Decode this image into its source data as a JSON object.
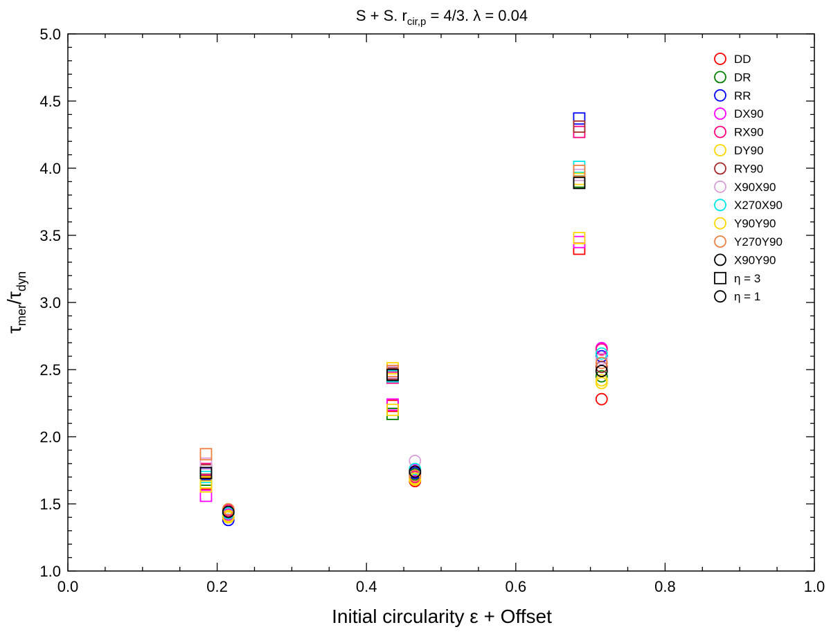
{
  "chart_data": {
    "type": "scatter",
    "title": "S + S. r",
    "title_sub": "cir,p",
    "title_rest": " = 4/3. λ = 0.04",
    "xlabel": "Initial circularity ε + Offset",
    "ylabel_main1": "τ",
    "ylabel_sub1": "mer",
    "ylabel_slash": "/τ",
    "ylabel_sub2": "dyn",
    "xlim": [
      0.0,
      1.0
    ],
    "ylim": [
      1.0,
      5.0
    ],
    "x_ticks": [
      "0.0",
      "0.2",
      "0.4",
      "0.6",
      "0.8",
      "1.0"
    ],
    "y_ticks": [
      "1.0",
      "1.5",
      "2.0",
      "2.5",
      "3.0",
      "3.5",
      "4.0",
      "4.5",
      "5.0"
    ],
    "grid": false,
    "legend_position": "top-right",
    "series": [
      {
        "name": "DD",
        "color": "#ff0000",
        "eta3": [
          [
            0.185,
            1.65
          ],
          [
            0.435,
            2.23
          ],
          [
            0.685,
            3.4
          ]
        ],
        "eta1": [
          [
            0.215,
            1.43
          ],
          [
            0.465,
            1.67
          ],
          [
            0.715,
            2.28
          ]
        ]
      },
      {
        "name": "DR",
        "color": "#008000",
        "eta3": [
          [
            0.185,
            1.68
          ],
          [
            0.435,
            2.17
          ],
          [
            0.685,
            3.9
          ]
        ],
        "eta1": [
          [
            0.215,
            1.4
          ],
          [
            0.465,
            1.72
          ],
          [
            0.715,
            2.45
          ]
        ]
      },
      {
        "name": "RR",
        "color": "#0000ff",
        "eta3": [
          [
            0.185,
            1.72
          ],
          [
            0.435,
            2.46
          ],
          [
            0.685,
            4.37
          ]
        ],
        "eta1": [
          [
            0.215,
            1.38
          ],
          [
            0.465,
            1.73
          ],
          [
            0.715,
            2.6
          ]
        ]
      },
      {
        "name": "DX90",
        "color": "#ff00ff",
        "eta3": [
          [
            0.185,
            1.56
          ],
          [
            0.435,
            2.24
          ],
          [
            0.685,
            3.45
          ]
        ],
        "eta1": [
          [
            0.215,
            1.42
          ],
          [
            0.465,
            1.75
          ],
          [
            0.715,
            2.66
          ]
        ]
      },
      {
        "name": "RX90",
        "color": "#ff0080",
        "eta3": [
          [
            0.185,
            1.76
          ],
          [
            0.435,
            2.44
          ],
          [
            0.685,
            4.27
          ]
        ],
        "eta1": [
          [
            0.215,
            1.45
          ],
          [
            0.465,
            1.7
          ],
          [
            0.715,
            2.65
          ]
        ]
      },
      {
        "name": "DY90",
        "color": "#ffd700",
        "eta3": [
          [
            0.185,
            1.63
          ],
          [
            0.435,
            2.2
          ],
          [
            0.685,
            3.48
          ]
        ],
        "eta1": [
          [
            0.215,
            1.41
          ],
          [
            0.465,
            1.68
          ],
          [
            0.715,
            2.4
          ]
        ]
      },
      {
        "name": "RY90",
        "color": "#a52a2a",
        "eta3": [
          [
            0.185,
            1.75
          ],
          [
            0.435,
            2.47
          ],
          [
            0.685,
            4.31
          ]
        ],
        "eta1": [
          [
            0.215,
            1.46
          ],
          [
            0.465,
            1.74
          ],
          [
            0.715,
            2.52
          ]
        ]
      },
      {
        "name": "X90X90",
        "color": "#d8a0d8",
        "eta3": [
          [
            0.185,
            1.8
          ],
          [
            0.435,
            2.48
          ],
          [
            0.685,
            3.95
          ]
        ],
        "eta1": [
          [
            0.215,
            1.44
          ],
          [
            0.465,
            1.82
          ],
          [
            0.715,
            2.58
          ]
        ]
      },
      {
        "name": "X270X90",
        "color": "#00e5e5",
        "eta3": [
          [
            0.185,
            1.7
          ],
          [
            0.435,
            2.45
          ],
          [
            0.685,
            4.01
          ]
        ],
        "eta1": [
          [
            0.215,
            1.43
          ],
          [
            0.465,
            1.76
          ],
          [
            0.715,
            2.62
          ]
        ]
      },
      {
        "name": "Y90Y90",
        "color": "#ffd700",
        "eta3": [
          [
            0.185,
            1.66
          ],
          [
            0.435,
            2.51
          ],
          [
            0.685,
            3.92
          ]
        ],
        "eta1": [
          [
            0.215,
            1.4
          ],
          [
            0.465,
            1.69
          ],
          [
            0.715,
            2.42
          ]
        ]
      },
      {
        "name": "Y270Y90",
        "color": "#f08040",
        "eta3": [
          [
            0.185,
            1.87
          ],
          [
            0.435,
            2.49
          ],
          [
            0.685,
            3.98
          ]
        ],
        "eta1": [
          [
            0.215,
            1.46
          ],
          [
            0.465,
            1.71
          ],
          [
            0.715,
            2.55
          ]
        ]
      },
      {
        "name": "X90Y90",
        "color": "#000000",
        "eta3": [
          [
            0.185,
            1.73
          ],
          [
            0.435,
            2.46
          ],
          [
            0.685,
            3.89
          ]
        ],
        "eta1": [
          [
            0.215,
            1.44
          ],
          [
            0.465,
            1.74
          ],
          [
            0.715,
            2.49
          ]
        ]
      }
    ],
    "marker_legend": [
      {
        "name": "η = 3",
        "shape": "square"
      },
      {
        "name": "η = 1",
        "shape": "circle"
      }
    ]
  }
}
